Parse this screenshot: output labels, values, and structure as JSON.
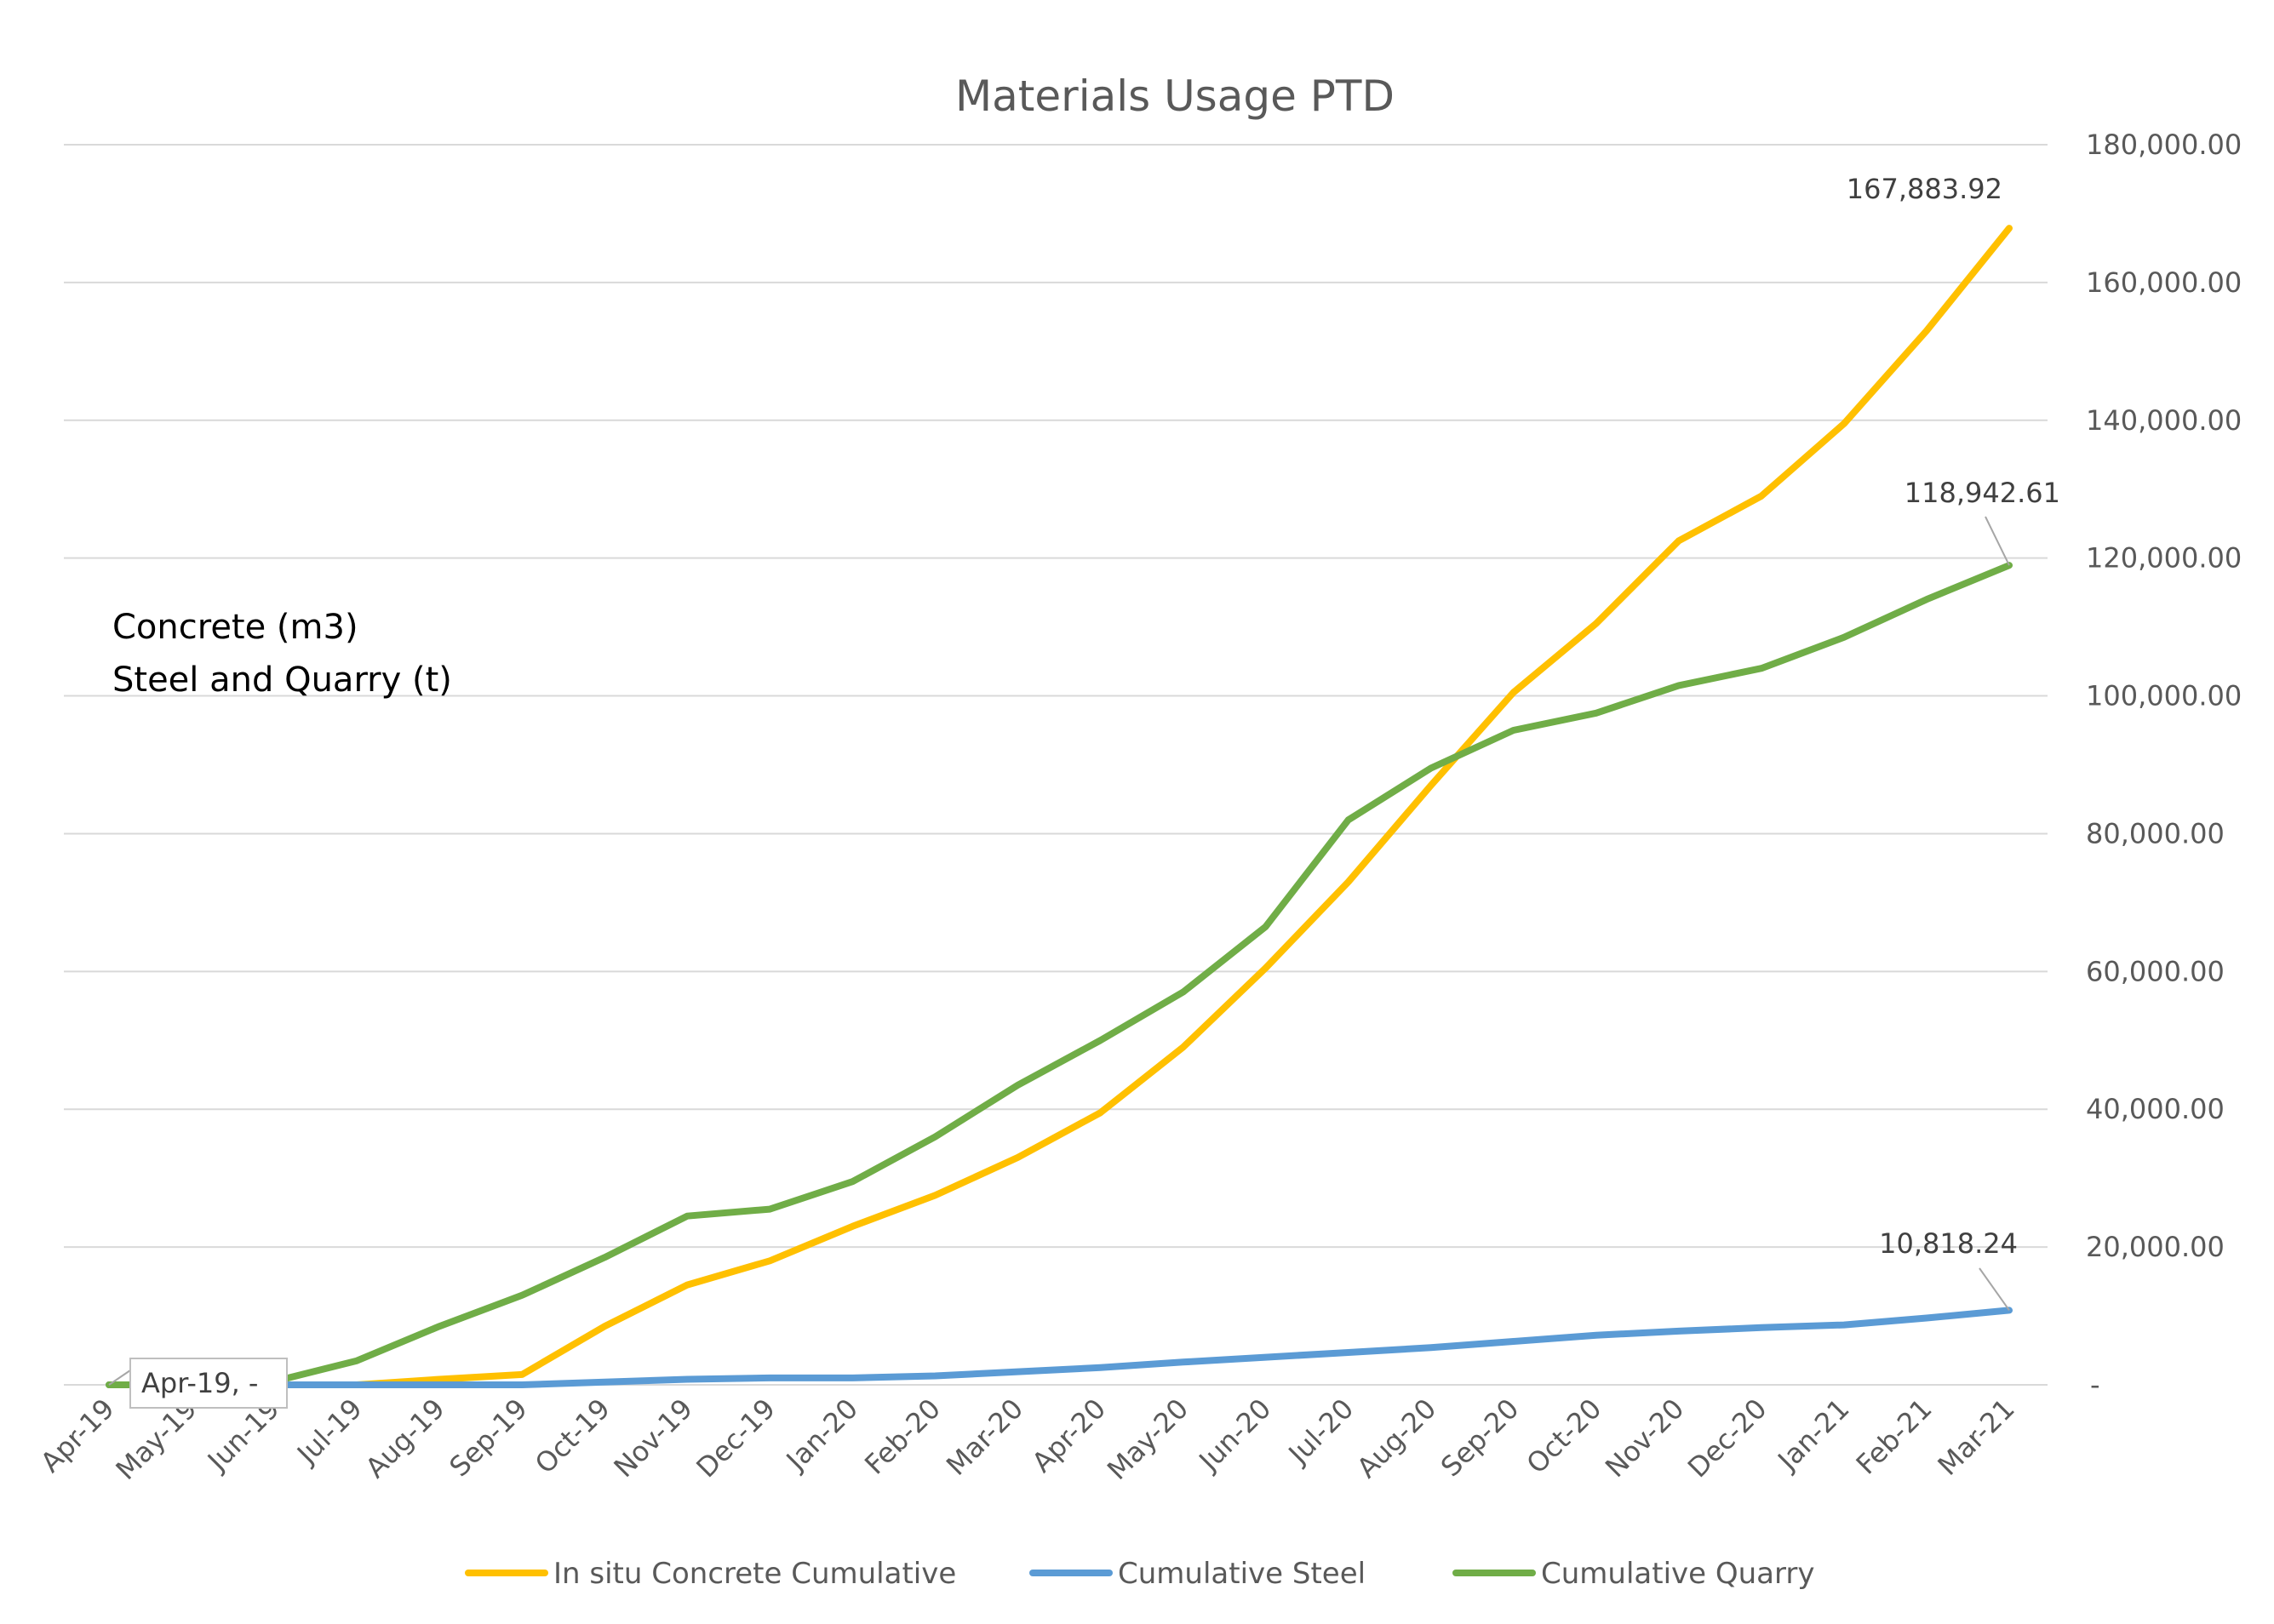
{
  "chart_data": {
    "type": "line",
    "title": "Materials Usage PTD",
    "annotation_lines": [
      "Concrete (m3)",
      "Steel and Quarry (t)"
    ],
    "y_axis_position": "right",
    "ylim": [
      0,
      180000
    ],
    "y_ticks": [
      {
        "value": 0,
        "label": "-"
      },
      {
        "value": 20000,
        "label": "20,000.00"
      },
      {
        "value": 40000,
        "label": "40,000.00"
      },
      {
        "value": 60000,
        "label": "60,000.00"
      },
      {
        "value": 80000,
        "label": "80,000.00"
      },
      {
        "value": 100000,
        "label": "100,000.00"
      },
      {
        "value": 120000,
        "label": "120,000.00"
      },
      {
        "value": 140000,
        "label": "140,000.00"
      },
      {
        "value": 160000,
        "label": "160,000.00"
      },
      {
        "value": 180000,
        "label": "180,000.00"
      }
    ],
    "categories": [
      "Apr-19",
      "May-19",
      "Jun-19",
      "Jul-19",
      "Aug-19",
      "Sep-19",
      "Oct-19",
      "Nov-19",
      "Dec-19",
      "Jan-20",
      "Feb-20",
      "Mar-20",
      "Apr-20",
      "May-20",
      "Jun-20",
      "Jul-20",
      "Aug-20",
      "Sep-20",
      "Oct-20",
      "Nov-20",
      "Dec-20",
      "Jan-21",
      "Feb-21",
      "Mar-21"
    ],
    "grid": true,
    "legend_position": "bottom",
    "series": [
      {
        "name": "In situ Concrete Cumulative",
        "color": "#ffc000",
        "values": [
          0,
          0,
          0,
          0,
          800,
          1500,
          8500,
          14500,
          18000,
          23000,
          27500,
          33000,
          39500,
          49000,
          60500,
          73000,
          87000,
          100500,
          110500,
          122500,
          129000,
          139500,
          153000,
          167883.92
        ],
        "end_label": "167,883.92"
      },
      {
        "name": "Cumulative Steel",
        "color": "#5b9bd5",
        "values": [
          0,
          0,
          0,
          0,
          0,
          0,
          400,
          800,
          1000,
          1000,
          1300,
          1900,
          2500,
          3300,
          4000,
          4700,
          5400,
          6300,
          7200,
          7800,
          8300,
          8700,
          9700,
          10818.24
        ],
        "end_label": "10,818.24"
      },
      {
        "name": "Cumulative Quarry",
        "color": "#70ad47",
        "values": [
          0,
          0,
          500,
          3500,
          8500,
          13000,
          18500,
          24500,
          25500,
          29500,
          36000,
          43500,
          50000,
          57000,
          66500,
          82000,
          89500,
          95000,
          97500,
          101500,
          104000,
          108500,
          114000,
          118942.61
        ],
        "end_label": "118,942.61"
      }
    ],
    "first_point_callout": "Apr-19,  -"
  }
}
